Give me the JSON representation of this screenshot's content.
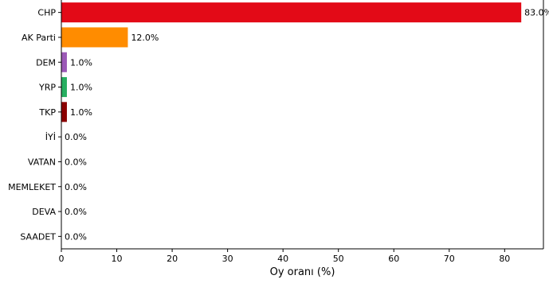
{
  "chart_data": {
    "type": "bar",
    "orientation": "horizontal",
    "categories": [
      "CHP",
      "AK Parti",
      "DEM",
      "YRP",
      "TKP",
      "İYİ",
      "VATAN",
      "MEMLEKET",
      "DEVA",
      "SAADET"
    ],
    "values": [
      83.0,
      12.0,
      1.0,
      1.0,
      1.0,
      0.0,
      0.0,
      0.0,
      0.0,
      0.0
    ],
    "value_labels": [
      "83.0%",
      "12.0%",
      "1.0%",
      "1.0%",
      "1.0%",
      "0.0%",
      "0.0%",
      "0.0%",
      "0.0%",
      "0.0%"
    ],
    "colors": [
      "#e30a17",
      "#ff8c00",
      "#9b59b6",
      "#27ae60",
      "#8b0000",
      "#1e90ff",
      "#444444",
      "#444444",
      "#444444",
      "#444444"
    ],
    "xlabel": "Oy oranı (%)",
    "ylabel": "",
    "xlim": [
      0,
      87
    ],
    "xticks": [
      0,
      10,
      20,
      30,
      40,
      50,
      60,
      70,
      80
    ],
    "grid": false
  }
}
